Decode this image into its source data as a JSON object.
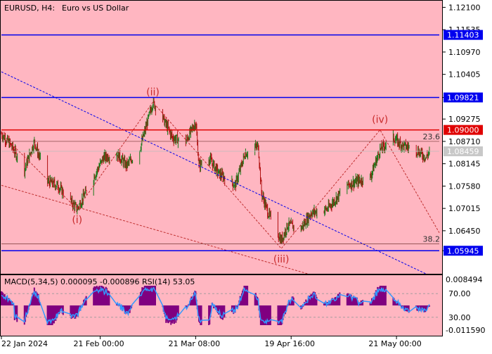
{
  "header": {
    "symbol": "EURUSD, H4:",
    "description": "Euro vs US Dollar"
  },
  "colors": {
    "background": "#ffb6c1",
    "panel_border": "#000000",
    "bull_candle": "#1a7a1a",
    "bear_candle": "#b01010",
    "level_line": "#0000ee",
    "resistance_line": "#e00000",
    "trend_line": "#0000ee",
    "channel_line": "#c03030",
    "wave_label": "#c82a2a",
    "macd_hist": "#800080",
    "rsi_line": "#3399ff"
  },
  "chart_data": [
    {
      "type": "candlestick",
      "title": "EURUSD, H4:  Euro vs US Dollar",
      "timeframe": "H4",
      "ylim": [
        1.0538,
        1.1225
      ],
      "y_ticks": [
        "1.12100",
        "1.11535",
        "1.10970",
        "1.10405",
        "1.09821",
        "1.09275",
        "1.08710",
        "1.08145",
        "1.07580",
        "1.07015",
        "1.06450",
        "1.05945"
      ],
      "x_ticks": [
        "22 Jan 2024",
        "21 Feb 00:00",
        "21 Mar 08:00",
        "19 Apr 16:00",
        "21 May 00:00"
      ],
      "x_start": "2024-01-22",
      "x_end": "2024-06-03",
      "price_anchors": [
        [
          "2024-01-22",
          1.089
        ],
        [
          "2024-01-25",
          1.086
        ],
        [
          "2024-01-29",
          1.08
        ],
        [
          "2024-02-01",
          1.087
        ],
        [
          "2024-02-05",
          1.077
        ],
        [
          "2024-02-08",
          1.076
        ],
        [
          "2024-02-14",
          1.07
        ],
        [
          "2024-02-19",
          1.078
        ],
        [
          "2024-02-22",
          1.083
        ],
        [
          "2024-02-26",
          1.084
        ],
        [
          "2024-02-29",
          1.081
        ],
        [
          "2024-03-04",
          1.085
        ],
        [
          "2024-03-08",
          1.097
        ],
        [
          "2024-03-11",
          1.093
        ],
        [
          "2024-03-14",
          1.088
        ],
        [
          "2024-03-18",
          1.087
        ],
        [
          "2024-03-21",
          1.092
        ],
        [
          "2024-03-22",
          1.081
        ],
        [
          "2024-03-25",
          1.083
        ],
        [
          "2024-03-28",
          1.079
        ],
        [
          "2024-04-02",
          1.076
        ],
        [
          "2024-04-05",
          1.084
        ],
        [
          "2024-04-09",
          1.086
        ],
        [
          "2024-04-10",
          1.074
        ],
        [
          "2024-04-12",
          1.069
        ],
        [
          "2024-04-16",
          1.062
        ],
        [
          "2024-04-18",
          1.066
        ],
        [
          "2024-04-22",
          1.065
        ],
        [
          "2024-04-25",
          1.069
        ],
        [
          "2024-04-30",
          1.07
        ],
        [
          "2024-05-02",
          1.072
        ],
        [
          "2024-05-06",
          1.076
        ],
        [
          "2024-05-09",
          1.077
        ],
        [
          "2024-05-13",
          1.078
        ],
        [
          "2024-05-16",
          1.085
        ],
        [
          "2024-05-20",
          1.088
        ],
        [
          "2024-05-23",
          1.086
        ],
        [
          "2024-05-27",
          1.085
        ],
        [
          "2024-05-30",
          1.083
        ],
        [
          "2024-05-31",
          1.0846
        ]
      ],
      "levels": [
        {
          "label": "1.11403",
          "value": 1.11403,
          "color": "#0000ee"
        },
        {
          "label": "1.09821",
          "value": 1.09821,
          "color": "#0000ee"
        },
        {
          "label": "1.09000",
          "value": 1.09,
          "color": "#e00000"
        },
        {
          "label": "1.05945",
          "value": 1.05945,
          "color": "#0000ee"
        }
      ],
      "current_price": {
        "label": "1.08459",
        "value": 1.08459
      },
      "fib_levels": [
        {
          "label": "23.6",
          "value": 1.0871
        },
        {
          "label": "38.2",
          "value": 1.0612
        }
      ],
      "wave_labels": [
        {
          "label": "(i)",
          "date": "2024-02-14",
          "price": 1.07,
          "position": "below"
        },
        {
          "label": "(ii)",
          "date": "2024-03-08",
          "price": 1.097,
          "position": "above"
        },
        {
          "label": "(iii)",
          "date": "2024-04-16",
          "price": 1.06,
          "position": "below"
        },
        {
          "label": "(iv)",
          "date": "2024-05-16",
          "price": 1.09,
          "position": "above"
        }
      ]
    },
    {
      "type": "indicator",
      "title": "MACD(5,34,5) 0.000095 -0.000896 RSI(14) 53.05",
      "series": [
        {
          "name": "MACD(5,34,5)",
          "values": [
            9.5e-05,
            -0.000896
          ]
        },
        {
          "name": "RSI(14)",
          "values": [
            53.05
          ]
        }
      ],
      "left_axis": [
        "0.008494",
        "-0.011590"
      ],
      "rsi_levels": [
        "70.00",
        "30.00"
      ]
    }
  ]
}
